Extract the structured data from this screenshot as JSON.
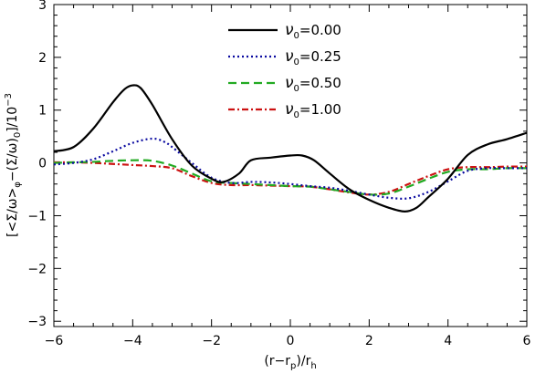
{
  "chart_data": {
    "type": "line",
    "title": "",
    "xlabel_parts": {
      "main": "(r−r",
      "sub1": "p",
      "mid": ")/r",
      "sub2": "h"
    },
    "ylabel_parts": {
      "a": "[<Σ/ω>",
      "sub1": "φ",
      "b": "−(Σ/ω)",
      "sub2": "0",
      "c": "]/10",
      "sup": "−3"
    },
    "xlim": [
      -6,
      6
    ],
    "ylim": [
      -3.1,
      3
    ],
    "xticks": [
      -6,
      -4,
      -2,
      0,
      2,
      4,
      6
    ],
    "xtick_labels": [
      "−6",
      "−4",
      "−2",
      "0",
      "2",
      "4",
      "6"
    ],
    "yticks": [
      -3,
      -2,
      -1,
      0,
      1,
      2,
      3
    ],
    "ytick_labels": [
      "−3",
      "−2",
      "−1",
      "0",
      "1",
      "2",
      "3"
    ],
    "legend_position": "top-center",
    "grid": false,
    "series": [
      {
        "name": "ν0=0.00",
        "legend_symbol": "ν",
        "legend_sub": "0",
        "legend_value": "=0.00",
        "color": "#000000",
        "dash": "none",
        "width": 2.2,
        "points": [
          [
            -6,
            0.22
          ],
          [
            -5.5,
            0.3
          ],
          [
            -5,
            0.65
          ],
          [
            -4.5,
            1.15
          ],
          [
            -4.2,
            1.4
          ],
          [
            -4,
            1.47
          ],
          [
            -3.8,
            1.42
          ],
          [
            -3.5,
            1.1
          ],
          [
            -3,
            0.45
          ],
          [
            -2.5,
            -0.05
          ],
          [
            -2,
            -0.3
          ],
          [
            -1.7,
            -0.36
          ],
          [
            -1.3,
            -0.2
          ],
          [
            -1,
            0.05
          ],
          [
            -0.5,
            0.1
          ],
          [
            0,
            0.14
          ],
          [
            0.3,
            0.14
          ],
          [
            0.6,
            0.05
          ],
          [
            1,
            -0.2
          ],
          [
            1.5,
            -0.5
          ],
          [
            2,
            -0.7
          ],
          [
            2.5,
            -0.85
          ],
          [
            2.9,
            -0.92
          ],
          [
            3.2,
            -0.85
          ],
          [
            3.5,
            -0.65
          ],
          [
            4,
            -0.3
          ],
          [
            4.5,
            0.15
          ],
          [
            5,
            0.35
          ],
          [
            5.5,
            0.45
          ],
          [
            6,
            0.57
          ]
        ]
      },
      {
        "name": "ν0=0.25",
        "legend_symbol": "ν",
        "legend_sub": "0",
        "legend_value": "=0.25",
        "color": "#0a0aa0",
        "dash": "2,3",
        "width": 2.2,
        "points": [
          [
            -6,
            -0.03
          ],
          [
            -5.5,
            0.0
          ],
          [
            -5,
            0.07
          ],
          [
            -4.5,
            0.22
          ],
          [
            -4,
            0.38
          ],
          [
            -3.5,
            0.46
          ],
          [
            -3.2,
            0.4
          ],
          [
            -3,
            0.3
          ],
          [
            -2.5,
            0.0
          ],
          [
            -2,
            -0.28
          ],
          [
            -1.5,
            -0.38
          ],
          [
            -1,
            -0.36
          ],
          [
            -0.5,
            -0.37
          ],
          [
            0,
            -0.4
          ],
          [
            0.5,
            -0.44
          ],
          [
            1,
            -0.47
          ],
          [
            1.5,
            -0.53
          ],
          [
            2,
            -0.6
          ],
          [
            2.5,
            -0.66
          ],
          [
            3,
            -0.67
          ],
          [
            3.5,
            -0.55
          ],
          [
            4,
            -0.35
          ],
          [
            4.5,
            -0.15
          ],
          [
            5,
            -0.1
          ],
          [
            5.5,
            -0.1
          ],
          [
            6,
            -0.1
          ]
        ]
      },
      {
        "name": "ν0=0.50",
        "legend_symbol": "ν",
        "legend_sub": "0",
        "legend_value": "=0.50",
        "color": "#22aa22",
        "dash": "9,5",
        "width": 2.2,
        "points": [
          [
            -6,
            0.0
          ],
          [
            -5.5,
            0.01
          ],
          [
            -5,
            0.02
          ],
          [
            -4.5,
            0.04
          ],
          [
            -4,
            0.05
          ],
          [
            -3.5,
            0.04
          ],
          [
            -3,
            -0.05
          ],
          [
            -2.5,
            -0.2
          ],
          [
            -2,
            -0.35
          ],
          [
            -1.5,
            -0.38
          ],
          [
            -1,
            -0.4
          ],
          [
            -0.5,
            -0.42
          ],
          [
            0,
            -0.44
          ],
          [
            0.5,
            -0.45
          ],
          [
            1,
            -0.5
          ],
          [
            1.5,
            -0.55
          ],
          [
            2,
            -0.6
          ],
          [
            2.5,
            -0.58
          ],
          [
            3,
            -0.45
          ],
          [
            3.5,
            -0.3
          ],
          [
            4,
            -0.17
          ],
          [
            4.5,
            -0.12
          ],
          [
            5,
            -0.12
          ],
          [
            5.5,
            -0.1
          ],
          [
            6,
            -0.1
          ]
        ]
      },
      {
        "name": "ν0=1.00",
        "legend_symbol": "ν",
        "legend_sub": "0",
        "legend_value": "=1.00",
        "color": "#cc1111",
        "dash": "7,3,2,3",
        "width": 2.2,
        "points": [
          [
            -6,
            0.01
          ],
          [
            -5.5,
            0.01
          ],
          [
            -5,
            0.0
          ],
          [
            -4.5,
            -0.02
          ],
          [
            -4,
            -0.04
          ],
          [
            -3.5,
            -0.06
          ],
          [
            -3,
            -0.1
          ],
          [
            -2.5,
            -0.25
          ],
          [
            -2,
            -0.38
          ],
          [
            -1.5,
            -0.42
          ],
          [
            -1,
            -0.42
          ],
          [
            -0.5,
            -0.43
          ],
          [
            0,
            -0.44
          ],
          [
            0.5,
            -0.45
          ],
          [
            1,
            -0.5
          ],
          [
            1.5,
            -0.56
          ],
          [
            2,
            -0.6
          ],
          [
            2.5,
            -0.55
          ],
          [
            3,
            -0.4
          ],
          [
            3.5,
            -0.25
          ],
          [
            4,
            -0.12
          ],
          [
            4.5,
            -0.08
          ],
          [
            5,
            -0.08
          ],
          [
            5.5,
            -0.07
          ],
          [
            6,
            -0.07
          ]
        ]
      }
    ]
  }
}
